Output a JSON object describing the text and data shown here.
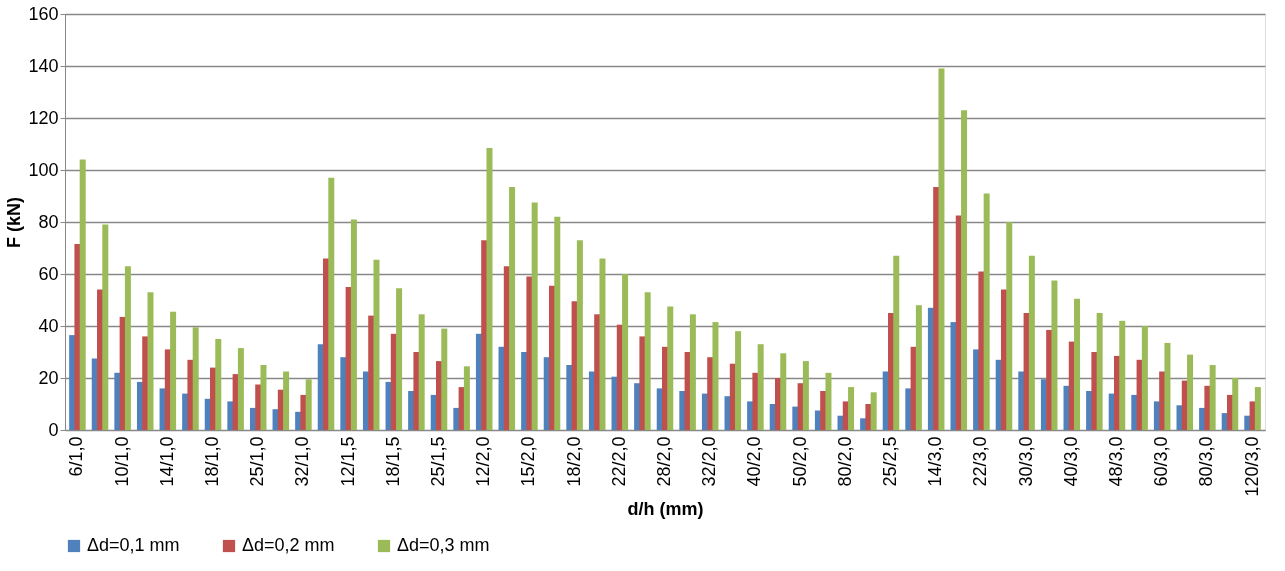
{
  "chart_data": {
    "type": "bar",
    "xlabel": "d/h (mm)",
    "ylabel": "F (kN)",
    "categories": [
      "6/1,0",
      null,
      "10/1,0",
      null,
      "14/1,0",
      null,
      "18/1,0",
      null,
      "25/1,0",
      null,
      "32/1,0",
      null,
      "12/1,5",
      null,
      "18/1,5",
      null,
      "25/1,5",
      null,
      "12/2,0",
      null,
      "15/2,0",
      null,
      "18/2,0",
      null,
      "22/2,0",
      null,
      "28/2,0",
      null,
      "32/2,0",
      null,
      "40/2,0",
      null,
      "50/2,0",
      null,
      "80/2,0",
      null,
      "25/2,5",
      null,
      "14/3,0",
      null,
      "22/3,0",
      null,
      "30/3,0",
      null,
      "40/3,0",
      null,
      "48/3,0",
      null,
      "60/3,0",
      null,
      "80/3,0",
      null,
      "120/3,0"
    ],
    "series": [
      {
        "name": "Δd=0,1 mm",
        "color": "#4f81bd",
        "values": [
          36.5,
          27.5,
          22,
          18.5,
          16,
          14,
          12,
          11,
          8.5,
          8,
          7,
          33,
          28,
          22.5,
          18.5,
          15,
          13.5,
          8.5,
          37,
          32,
          30,
          28,
          25,
          22.5,
          20.5,
          18,
          16,
          15,
          14,
          13,
          11,
          10,
          9,
          7.5,
          5.5,
          4.5,
          22.5,
          16,
          47,
          41.5,
          31,
          27,
          22.5,
          19.5,
          17,
          15,
          14,
          13.5,
          11,
          9.5,
          8.5,
          6.5,
          5.5
        ]
      },
      {
        "name": "Δd=0,2 mm",
        "color": "#c0504d",
        "values": [
          71.5,
          54,
          43.5,
          36,
          31,
          27,
          24,
          21.5,
          17.5,
          15.5,
          13.5,
          66,
          55,
          44,
          37,
          30,
          26.5,
          16.5,
          73,
          63,
          59,
          55.5,
          49.5,
          44.5,
          40.5,
          36,
          32,
          30,
          28,
          25.5,
          22,
          20,
          18,
          15,
          11,
          10,
          45,
          32,
          93.5,
          82.5,
          61,
          54,
          45,
          38.5,
          34,
          30,
          28.5,
          27,
          22.5,
          19,
          17,
          13.5,
          11
        ]
      },
      {
        "name": "Δd=0,3 mm",
        "color": "#9bbb59",
        "values": [
          104,
          79,
          63,
          53,
          45.5,
          39.5,
          35,
          31.5,
          25,
          22.5,
          19.5,
          97,
          81,
          65.5,
          54.5,
          44.5,
          39,
          24.5,
          108.5,
          93.5,
          87.5,
          82,
          73,
          66,
          60,
          53,
          47.5,
          44.5,
          41.5,
          38,
          33,
          29.5,
          26.5,
          22,
          16.5,
          14.5,
          67,
          48,
          139,
          123,
          91,
          80,
          67,
          57.5,
          50.5,
          45,
          42,
          40,
          33.5,
          29,
          25,
          20,
          16.5
        ]
      }
    ],
    "ylim": [
      0,
      160
    ],
    "yticks": [
      0,
      20,
      40,
      60,
      80,
      100,
      120,
      140,
      160
    ],
    "grid": "y",
    "legend": "bottom"
  }
}
